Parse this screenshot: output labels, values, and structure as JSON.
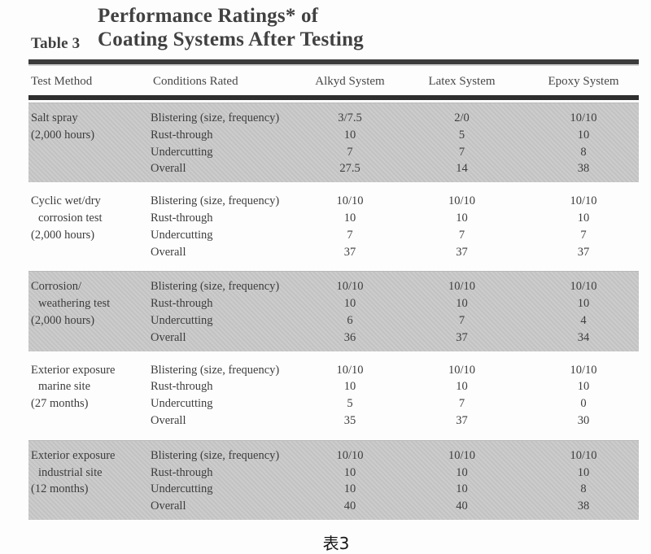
{
  "title": {
    "table_label": "Table 3",
    "line1": "Performance Ratings* of",
    "line2": "Coating Systems After Testing"
  },
  "caption": "表3",
  "colors": {
    "band": "#c9c9c9",
    "rule": "#2e2e2e",
    "text": "#3d3d3d"
  },
  "table": {
    "columns": [
      "Test Method",
      "Conditions Rated",
      "Alkyd System",
      "Latex System",
      "Epoxy System"
    ],
    "groups": [
      {
        "shaded": true,
        "method_lines": [
          {
            "text": "Salt spray",
            "indent": false
          },
          {
            "text": "(2,000 hours)",
            "indent": false
          }
        ],
        "rows": [
          {
            "condition": "Blistering (size, frequency)",
            "alkyd": "3/7.5",
            "latex": "2/0",
            "epoxy": "10/10"
          },
          {
            "condition": "Rust-through",
            "alkyd": "10",
            "latex": "5",
            "epoxy": "10"
          },
          {
            "condition": "Undercutting",
            "alkyd": "7",
            "latex": "7",
            "epoxy": "8"
          },
          {
            "condition": "Overall",
            "alkyd": "27.5",
            "latex": "14",
            "epoxy": "38"
          }
        ]
      },
      {
        "shaded": false,
        "method_lines": [
          {
            "text": "Cyclic wet/dry",
            "indent": false
          },
          {
            "text": "corrosion test",
            "indent": true
          },
          {
            "text": "(2,000 hours)",
            "indent": false
          }
        ],
        "rows": [
          {
            "condition": "Blistering (size, frequency)",
            "alkyd": "10/10",
            "latex": "10/10",
            "epoxy": "10/10"
          },
          {
            "condition": "Rust-through",
            "alkyd": "10",
            "latex": "10",
            "epoxy": "10"
          },
          {
            "condition": "Undercutting",
            "alkyd": "7",
            "latex": "7",
            "epoxy": "7"
          },
          {
            "condition": "Overall",
            "alkyd": "37",
            "latex": "37",
            "epoxy": "37"
          }
        ]
      },
      {
        "shaded": true,
        "method_lines": [
          {
            "text": "Corrosion/",
            "indent": false
          },
          {
            "text": "weathering test",
            "indent": true
          },
          {
            "text": "(2,000 hours)",
            "indent": false
          }
        ],
        "rows": [
          {
            "condition": "Blistering (size, frequency)",
            "alkyd": "10/10",
            "latex": "10/10",
            "epoxy": "10/10"
          },
          {
            "condition": "Rust-through",
            "alkyd": "10",
            "latex": "10",
            "epoxy": "10"
          },
          {
            "condition": "Undercutting",
            "alkyd": "6",
            "latex": "7",
            "epoxy": "4"
          },
          {
            "condition": "Overall",
            "alkyd": "36",
            "latex": "37",
            "epoxy": "34"
          }
        ]
      },
      {
        "shaded": false,
        "method_lines": [
          {
            "text": "Exterior exposure",
            "indent": false
          },
          {
            "text": "marine site",
            "indent": true
          },
          {
            "text": "(27 months)",
            "indent": false
          }
        ],
        "rows": [
          {
            "condition": "Blistering (size, frequency)",
            "alkyd": "10/10",
            "latex": "10/10",
            "epoxy": "10/10"
          },
          {
            "condition": "Rust-through",
            "alkyd": "10",
            "latex": "10",
            "epoxy": "10"
          },
          {
            "condition": "Undercutting",
            "alkyd": "5",
            "latex": "7",
            "epoxy": "0"
          },
          {
            "condition": "Overall",
            "alkyd": "35",
            "latex": "37",
            "epoxy": "30"
          }
        ]
      },
      {
        "shaded": true,
        "method_lines": [
          {
            "text": "Exterior exposure",
            "indent": false
          },
          {
            "text": "industrial site",
            "indent": true
          },
          {
            "text": "(12 months)",
            "indent": false
          }
        ],
        "rows": [
          {
            "condition": "Blistering (size, frequency)",
            "alkyd": "10/10",
            "latex": "10/10",
            "epoxy": "10/10"
          },
          {
            "condition": "Rust-through",
            "alkyd": "10",
            "latex": "10",
            "epoxy": "10"
          },
          {
            "condition": "Undercutting",
            "alkyd": "10",
            "latex": "10",
            "epoxy": "8"
          },
          {
            "condition": "Overall",
            "alkyd": "40",
            "latex": "40",
            "epoxy": "38"
          }
        ]
      }
    ]
  }
}
